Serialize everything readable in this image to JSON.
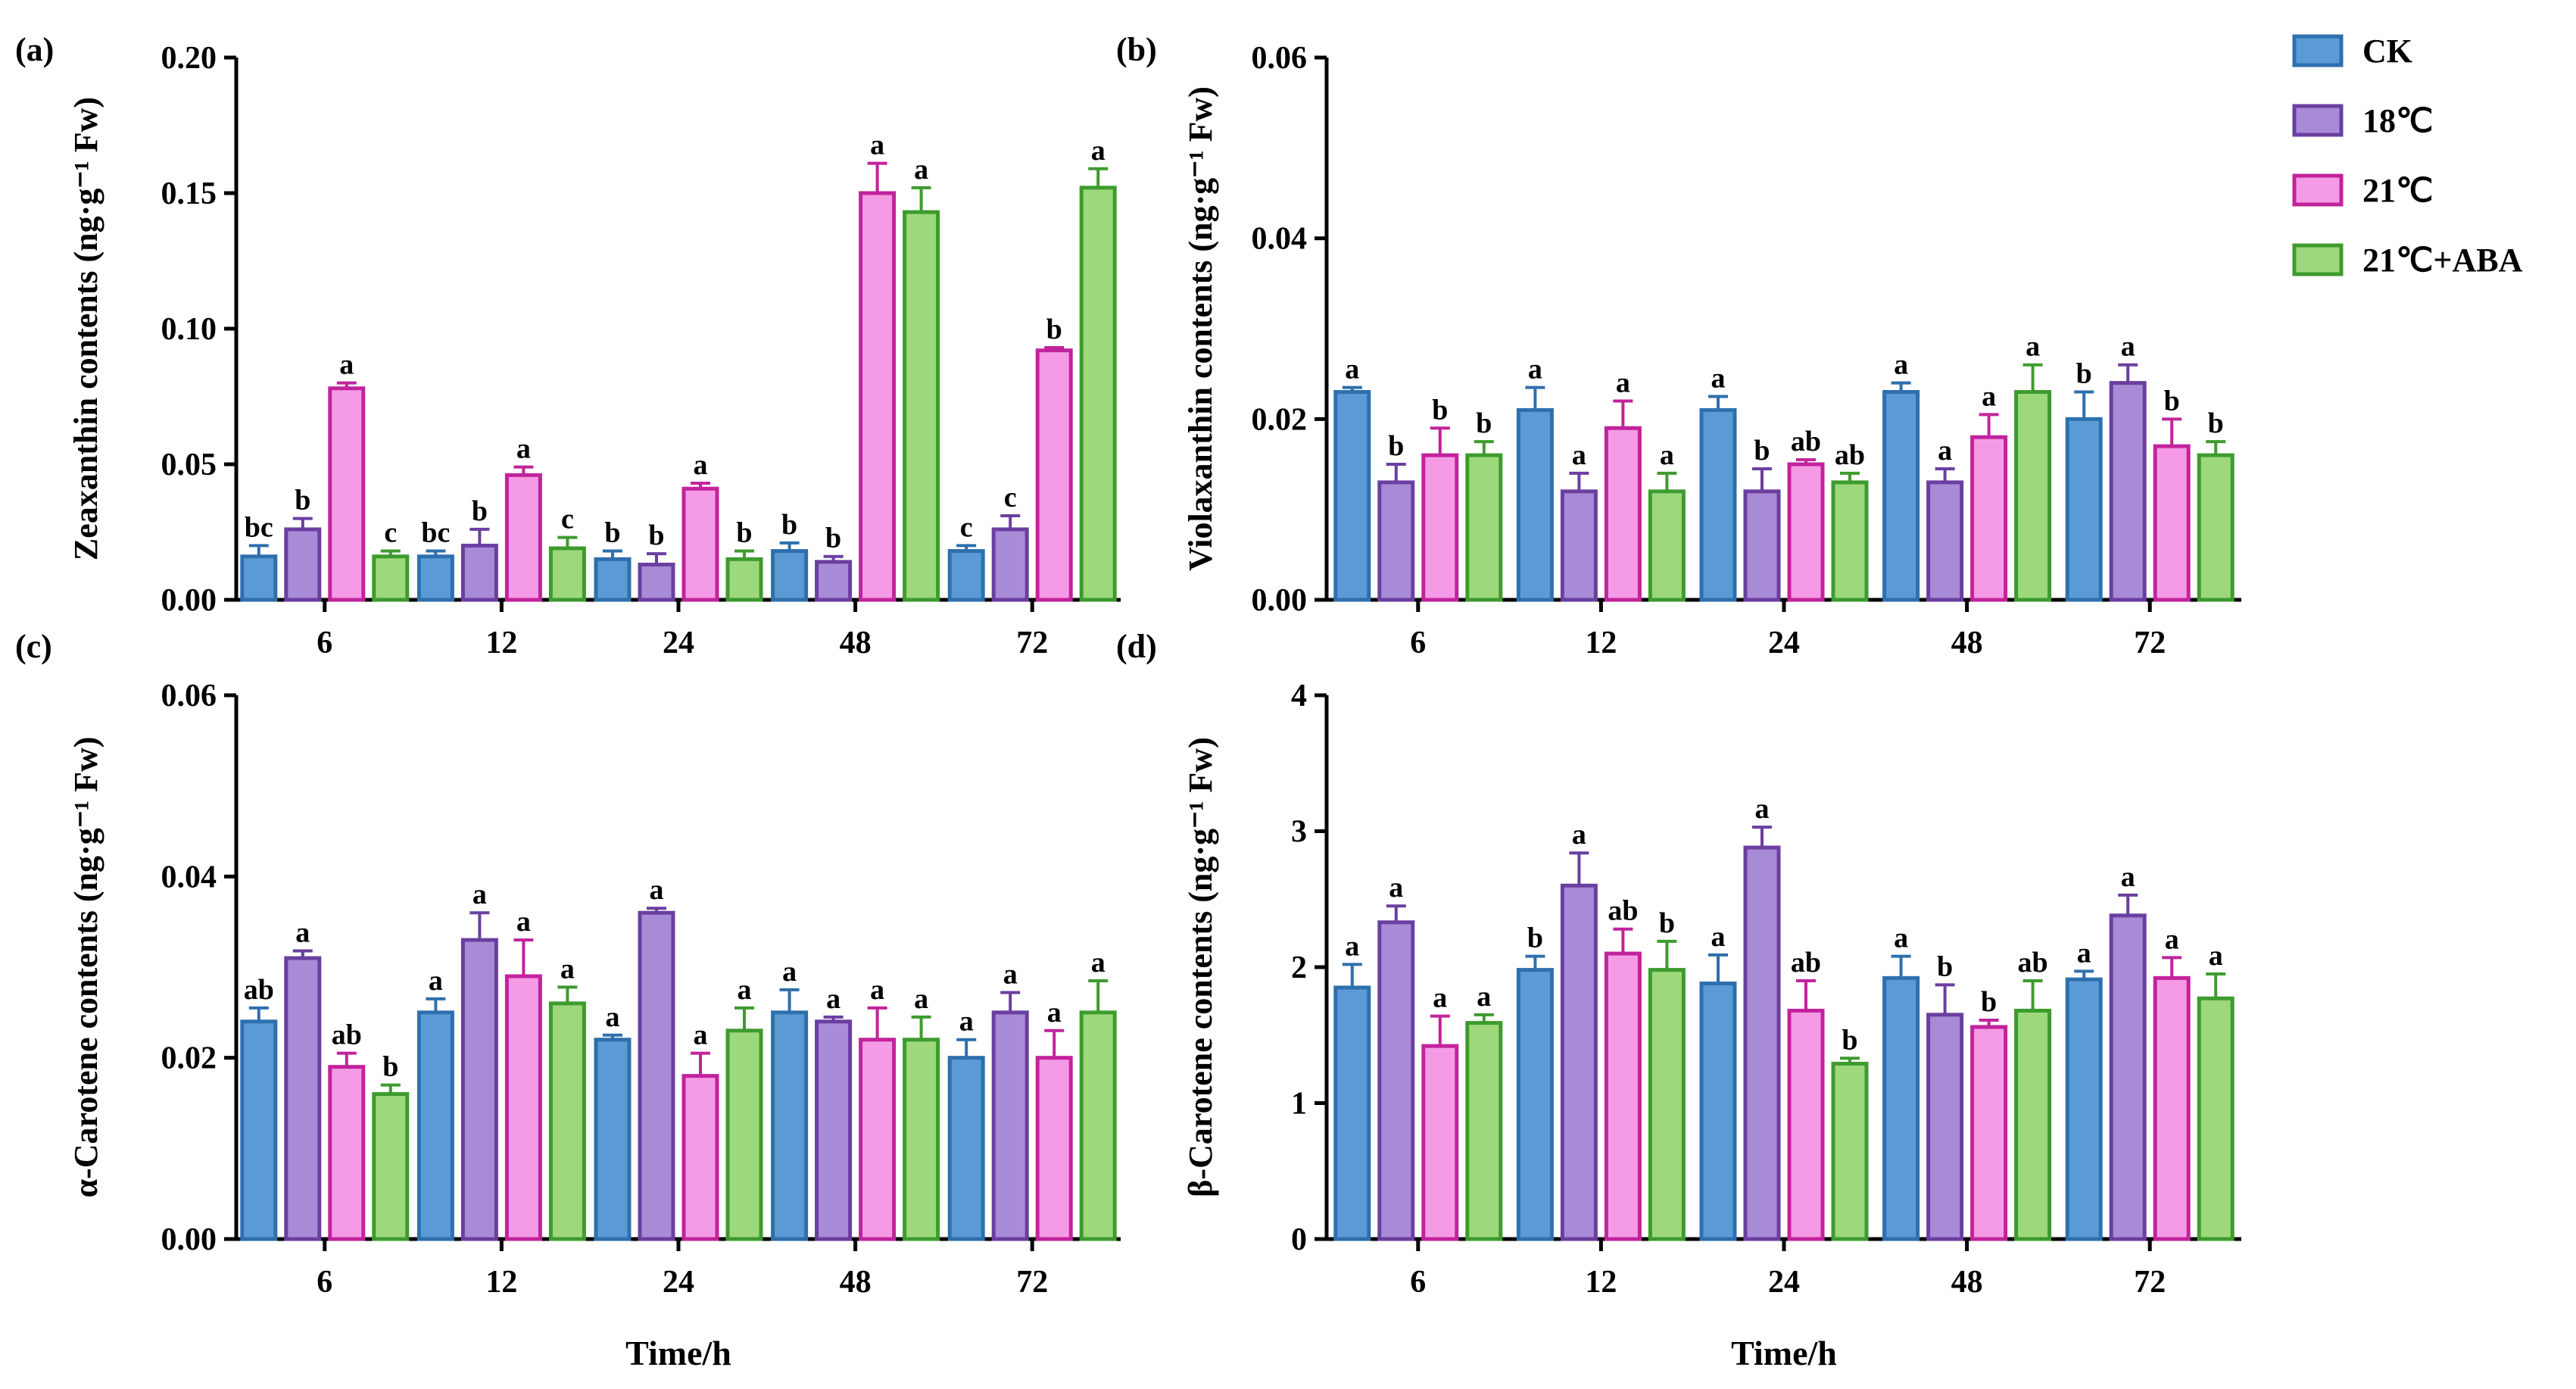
{
  "figure": {
    "series_colors": {
      "CK": {
        "fill": "#5b9bd5",
        "stroke": "#2e6fad"
      },
      "18℃": {
        "fill": "#a88bd6",
        "stroke": "#6a3fa0"
      },
      "21℃": {
        "fill": "#f59be6",
        "stroke": "#c2239c"
      },
      "21℃+ABA": {
        "fill": "#9ed87c",
        "stroke": "#3e9b2e"
      }
    }
  },
  "legend": [
    "CK",
    "18℃",
    "21℃",
    "21℃+ABA"
  ],
  "chart_data": [
    {
      "id": "a",
      "panel_label": "(a)",
      "type": "bar",
      "title": "",
      "ylabel": "Zeaxanthin contents (ng·g⁻¹ Fw)",
      "xlabel": "",
      "ylim": [
        0,
        0.2
      ],
      "yticks": [
        "0.00",
        "0.05",
        "0.10",
        "0.15",
        "0.20"
      ],
      "categories": [
        "6",
        "12",
        "24",
        "48",
        "72"
      ],
      "series": [
        {
          "name": "CK",
          "values": [
            0.016,
            0.016,
            0.015,
            0.018,
            0.018
          ],
          "errors": [
            0.004,
            0.002,
            0.003,
            0.003,
            0.002
          ],
          "letters": [
            "bc",
            "bc",
            "b",
            "b",
            "c"
          ]
        },
        {
          "name": "18℃",
          "values": [
            0.026,
            0.02,
            0.013,
            0.014,
            0.026
          ],
          "errors": [
            0.004,
            0.006,
            0.004,
            0.002,
            0.005
          ],
          "letters": [
            "b",
            "b",
            "b",
            "b",
            "c"
          ]
        },
        {
          "name": "21℃",
          "values": [
            0.078,
            0.046,
            0.041,
            0.15,
            0.092
          ],
          "errors": [
            0.002,
            0.003,
            0.002,
            0.011,
            0.001
          ],
          "letters": [
            "a",
            "a",
            "a",
            "a",
            "b"
          ]
        },
        {
          "name": "21℃+ABA",
          "values": [
            0.016,
            0.019,
            0.015,
            0.143,
            0.152
          ],
          "errors": [
            0.002,
            0.004,
            0.003,
            0.009,
            0.007
          ],
          "letters": [
            "c",
            "c",
            "b",
            "a",
            "a"
          ]
        }
      ]
    },
    {
      "id": "b",
      "panel_label": "(b)",
      "type": "bar",
      "title": "",
      "ylabel": "Violaxanthin contents (ng·g⁻¹ Fw)",
      "xlabel": "",
      "ylim": [
        0,
        0.06
      ],
      "yticks": [
        "0.00",
        "0.02",
        "0.04",
        "0.06"
      ],
      "categories": [
        "6",
        "12",
        "24",
        "48",
        "72"
      ],
      "series": [
        {
          "name": "CK",
          "values": [
            0.023,
            0.021,
            0.021,
            0.023,
            0.02
          ],
          "errors": [
            0.0005,
            0.0025,
            0.0015,
            0.001,
            0.003
          ],
          "letters": [
            "a",
            "a",
            "a",
            "a",
            "b"
          ]
        },
        {
          "name": "18℃",
          "values": [
            0.013,
            0.012,
            0.012,
            0.013,
            0.024
          ],
          "errors": [
            0.002,
            0.002,
            0.0025,
            0.0015,
            0.002
          ],
          "letters": [
            "b",
            "a",
            "b",
            "a",
            "a"
          ]
        },
        {
          "name": "21℃",
          "values": [
            0.016,
            0.019,
            0.015,
            0.018,
            0.017
          ],
          "errors": [
            0.003,
            0.003,
            0.0005,
            0.0025,
            0.003
          ],
          "letters": [
            "b",
            "a",
            "ab",
            "a",
            "b"
          ]
        },
        {
          "name": "21℃+ABA",
          "values": [
            0.016,
            0.012,
            0.013,
            0.023,
            0.016
          ],
          "errors": [
            0.0015,
            0.002,
            0.001,
            0.003,
            0.0015
          ],
          "letters": [
            "b",
            "a",
            "ab",
            "a",
            "b"
          ]
        }
      ]
    },
    {
      "id": "c",
      "panel_label": "(c)",
      "type": "bar",
      "title": "",
      "ylabel": "α-Carotene contents (ng·g⁻¹ Fw)",
      "xlabel": "Time/h",
      "ylim": [
        0,
        0.06
      ],
      "yticks": [
        "0.00",
        "0.02",
        "0.04",
        "0.06"
      ],
      "categories": [
        "6",
        "12",
        "24",
        "48",
        "72"
      ],
      "series": [
        {
          "name": "CK",
          "values": [
            0.024,
            0.025,
            0.022,
            0.025,
            0.02
          ],
          "errors": [
            0.0015,
            0.0015,
            0.0005,
            0.0025,
            0.002
          ],
          "letters": [
            "ab",
            "a",
            "a",
            "a",
            "a"
          ]
        },
        {
          "name": "18℃",
          "values": [
            0.031,
            0.033,
            0.036,
            0.024,
            0.025
          ],
          "errors": [
            0.0008,
            0.003,
            0.0005,
            0.0005,
            0.0022
          ],
          "letters": [
            "a",
            "a",
            "a",
            "a",
            "a"
          ]
        },
        {
          "name": "21℃",
          "values": [
            0.019,
            0.029,
            0.018,
            0.022,
            0.02
          ],
          "errors": [
            0.0015,
            0.004,
            0.0025,
            0.0035,
            0.003
          ],
          "letters": [
            "ab",
            "a",
            "a",
            "a",
            "a"
          ]
        },
        {
          "name": "21℃+ABA",
          "values": [
            0.016,
            0.026,
            0.023,
            0.022,
            0.025
          ],
          "errors": [
            0.001,
            0.0018,
            0.0025,
            0.0025,
            0.0035
          ],
          "letters": [
            "b",
            "a",
            "a",
            "a",
            "a"
          ]
        }
      ]
    },
    {
      "id": "d",
      "panel_label": "(d)",
      "type": "bar",
      "title": "",
      "ylabel": "β-Carotene contents (ng·g⁻¹ Fw)",
      "xlabel": "Time/h",
      "ylim": [
        0,
        4
      ],
      "yticks": [
        "0",
        "1",
        "2",
        "3",
        "4"
      ],
      "categories": [
        "6",
        "12",
        "24",
        "48",
        "72"
      ],
      "series": [
        {
          "name": "CK",
          "values": [
            1.85,
            1.98,
            1.88,
            1.92,
            1.91
          ],
          "errors": [
            0.17,
            0.1,
            0.21,
            0.16,
            0.06
          ],
          "letters": [
            "a",
            "b",
            "a",
            "a",
            "a"
          ]
        },
        {
          "name": "18℃",
          "values": [
            2.33,
            2.6,
            2.88,
            1.65,
            2.38
          ],
          "errors": [
            0.12,
            0.24,
            0.15,
            0.22,
            0.15
          ],
          "letters": [
            "a",
            "a",
            "a",
            "b",
            "a"
          ]
        },
        {
          "name": "21℃",
          "values": [
            1.42,
            2.1,
            1.68,
            1.56,
            1.92
          ],
          "errors": [
            0.22,
            0.18,
            0.22,
            0.05,
            0.15
          ],
          "letters": [
            "a",
            "ab",
            "ab",
            "b",
            "a"
          ]
        },
        {
          "name": "21℃+ABA",
          "values": [
            1.59,
            1.98,
            1.29,
            1.68,
            1.77
          ],
          "errors": [
            0.06,
            0.21,
            0.04,
            0.22,
            0.18
          ],
          "letters": [
            "a",
            "b",
            "b",
            "ab",
            "a"
          ]
        }
      ]
    }
  ]
}
